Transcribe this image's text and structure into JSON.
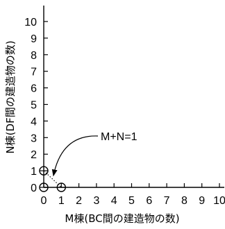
{
  "chart_data": {
    "type": "scatter",
    "xlabel": "M棟(BC間の建造物の数)",
    "ylabel": "N棟(DF間の建造物の数)",
    "xlim": [
      0,
      10
    ],
    "ylim": [
      0,
      10
    ],
    "x_ticks": [
      0,
      1,
      2,
      3,
      4,
      5,
      6,
      7,
      8,
      9,
      10
    ],
    "y_ticks": [
      0,
      1,
      2,
      3,
      4,
      5,
      6,
      7,
      8,
      9,
      10
    ],
    "points": [
      {
        "x": 0,
        "y": 0
      },
      {
        "x": 1,
        "y": 0
      },
      {
        "x": 0,
        "y": 1
      }
    ],
    "line": {
      "from": [
        0,
        1
      ],
      "to": [
        1,
        0
      ],
      "style": "dotted"
    },
    "annotation": {
      "text": "M+N=1",
      "arrow": true
    },
    "grid": false,
    "legend": "none"
  }
}
